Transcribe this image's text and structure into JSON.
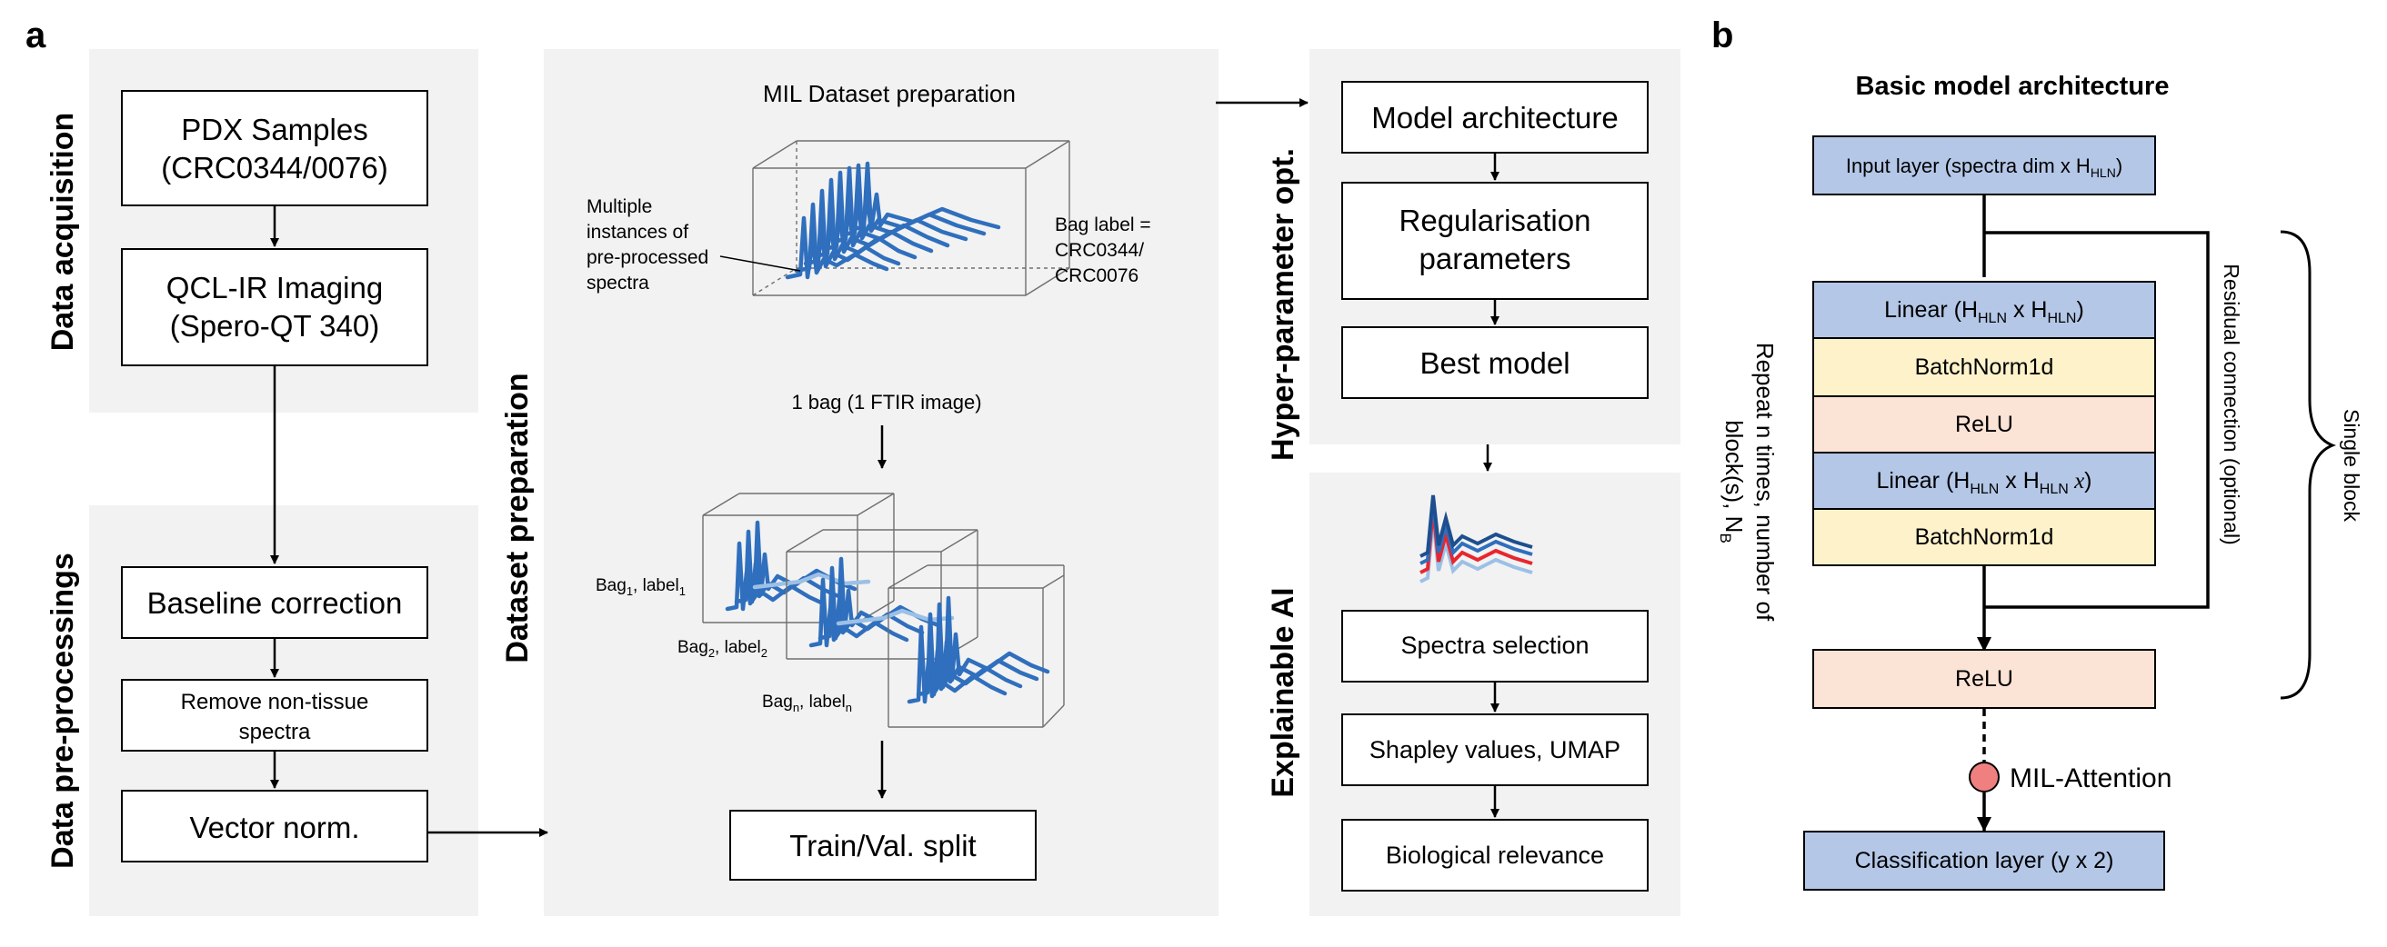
{
  "panel_a": {
    "letter": "a",
    "acquisition": {
      "title": "Data acquisition",
      "box1_line1": "PDX Samples",
      "box1_line2": "(CRC0344/0076)",
      "box2_line1": "QCL-IR Imaging",
      "box2_line2": "(Spero-QT 340)"
    },
    "preprocessing": {
      "title": "Data pre-processings",
      "baseline": "Baseline correction",
      "remove_line1": "Remove non-tissue",
      "remove_line2": "spectra",
      "vector_norm": "Vector norm."
    },
    "dataset": {
      "title": "Dataset preparation",
      "mil_title": "MIL Dataset preparation",
      "instances_line1": "Multiple",
      "instances_line2": "instances of",
      "instances_line3": "pre-processed",
      "instances_line4": "spectra",
      "bag_label_line1": "Bag label =",
      "bag_label_line2": "CRC0344/",
      "bag_label_line3": "CRC0076",
      "one_bag": "1 bag (1 FTIR image)",
      "bag1": {
        "main": "Bag",
        "sub": "1",
        "label": ", label",
        "label_sub": "1"
      },
      "bag2": {
        "main": "Bag",
        "sub": "2",
        "label": ", label",
        "label_sub": "2"
      },
      "bagn": {
        "main": "Bag",
        "sub": "n",
        "label": ", label",
        "label_sub": "n"
      },
      "split": "Train/Val. split"
    },
    "hyper": {
      "title": "Hyper-parameter opt.",
      "model_arch": "Model architecture",
      "reg_line1": "Regularisation",
      "reg_line2": "parameters",
      "best": "Best model"
    },
    "xai": {
      "title": "Explainable AI",
      "spectra_sel": "Spectra selection",
      "shapley": "Shapley values, UMAP",
      "bio": "Biological relevance"
    }
  },
  "panel_b": {
    "letter": "b",
    "title": "Basic model architecture",
    "input": {
      "pre": "Input layer (spectra dim x H",
      "sub": "HLN",
      "post": ")"
    },
    "linear1": {
      "pre": "Linear (H",
      "sub1": "HLN",
      "mid": " x H",
      "sub2": "HLN",
      "post": ")"
    },
    "batchnorm1": "BatchNorm1d",
    "relu1": "ReLU",
    "linear2": {
      "pre": "Linear (H",
      "sub1": "HLN",
      "mid": " x H",
      "sub2": "HLN",
      "italic": " x",
      "post": ")"
    },
    "batchnorm2": "BatchNorm1d",
    "relu2": "ReLU",
    "mil_attention": "MIL-Attention",
    "classification": "Classification layer (y x 2)",
    "repeat_line1": "Repeat n times, number of",
    "repeat_line2_pre": "block(s), N",
    "repeat_line2_sub": "B",
    "residual": "Residual connection (optional)",
    "single_block": "Single block"
  },
  "colors": {
    "panel_bg": "#f2f2f2",
    "layer_blue": "#b4c7e7",
    "layer_yellow": "#fef2cb",
    "layer_peach": "#fbe3d6",
    "spectra_blue": "#2f6fbd",
    "spectra_red": "#e8262f",
    "attention_node": "#f08080"
  }
}
